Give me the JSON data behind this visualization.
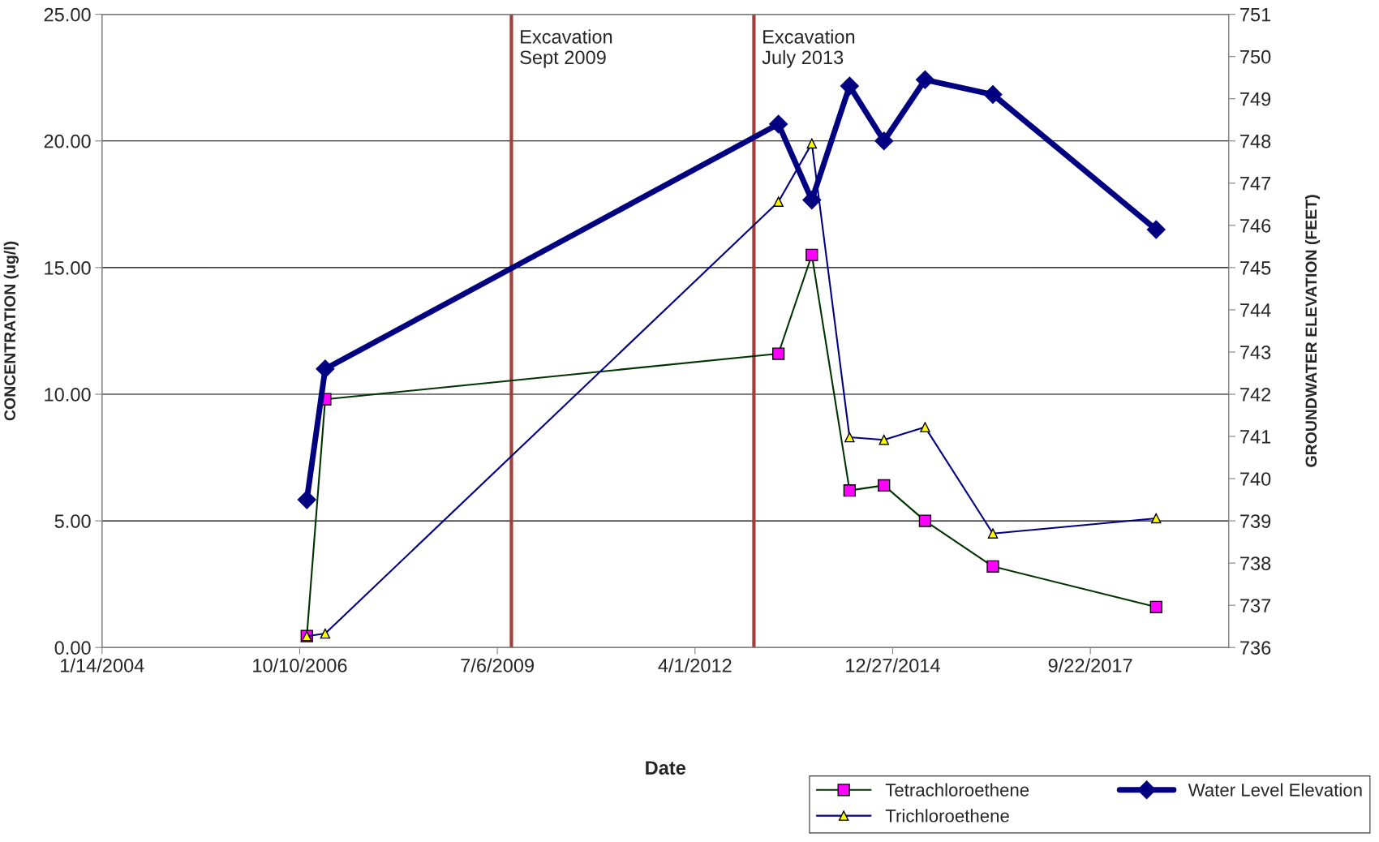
{
  "chart_data": {
    "type": "line",
    "xlabel": "Date",
    "ylabel": "CONCENTRATION (ug/l)",
    "y2label": "GROUNDWATER ELEVATION (FEET)",
    "xlim": [
      "2004-01-14",
      "2019-08-23"
    ],
    "xticks": [
      {
        "value": "2004-01-14",
        "label": "1/14/2004"
      },
      {
        "value": "2006-10-10",
        "label": "10/10/2006"
      },
      {
        "value": "2009-07-06",
        "label": "7/6/2009"
      },
      {
        "value": "2012-04-01",
        "label": "4/1/2012"
      },
      {
        "value": "2014-12-27",
        "label": "12/27/2014"
      },
      {
        "value": "2017-09-22",
        "label": "9/22/2017"
      }
    ],
    "ylim": [
      0,
      25
    ],
    "yticks": [
      {
        "value": 0,
        "label": "0.00"
      },
      {
        "value": 5,
        "label": "5.00"
      },
      {
        "value": 10,
        "label": "10.00"
      },
      {
        "value": 15,
        "label": "15.00"
      },
      {
        "value": 20,
        "label": "20.00"
      },
      {
        "value": 25,
        "label": "25.00"
      }
    ],
    "y2lim": [
      736,
      751
    ],
    "y2ticks": [
      736,
      737,
      738,
      739,
      740,
      741,
      742,
      743,
      744,
      745,
      746,
      747,
      748,
      749,
      750,
      751
    ],
    "grid": "y",
    "legend": "bottom right",
    "x": [
      "2006-11-15",
      "2007-02-16",
      "2013-05-28",
      "2013-11-13",
      "2014-05-23",
      "2014-11-13",
      "2015-06-09",
      "2016-05-17",
      "2018-08-21"
    ],
    "series": [
      {
        "name": "Tetrachloroethene",
        "color": "#003300",
        "marker": "square",
        "values": [
          0.45,
          9.8,
          11.6,
          15.5,
          6.2,
          6.4,
          5.0,
          3.2,
          1.6
        ]
      },
      {
        "name": "Trichloroethene",
        "color": "#000080",
        "marker": "triangle",
        "values": [
          0.45,
          0.55,
          17.6,
          19.9,
          8.3,
          8.2,
          8.7,
          4.5,
          5.1
        ]
      },
      {
        "name": "Water Level Elevation",
        "color": "#000080",
        "marker": "diamond",
        "axis": "y2",
        "values": [
          739.5,
          742.6,
          748.4,
          746.6,
          749.3,
          748.0,
          749.45,
          749.1,
          745.9
        ]
      }
    ],
    "ref_lines": [
      {
        "axis": "x",
        "value": "2009-09-15",
        "label": "Excavation\nSept 2009",
        "color": "#a0403c"
      },
      {
        "axis": "x",
        "value": "2013-01-24",
        "label": "Excavation\nJuly 2013",
        "color": "#a0403c"
      }
    ]
  }
}
